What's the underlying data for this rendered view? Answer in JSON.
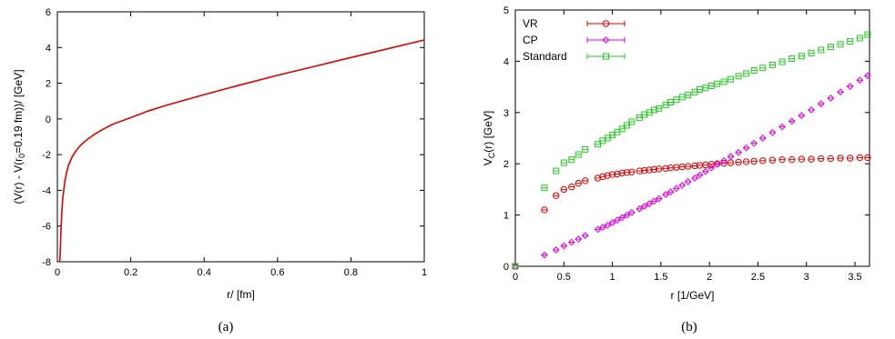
{
  "chart_data": [
    {
      "type": "line",
      "caption": "(a)",
      "xlabel": "r/ [fm]",
      "ylabel": "(V(r) - V(r0=0.19 fm))/ [GeV]",
      "xlim": [
        0,
        1
      ],
      "ylim": [
        -8,
        6
      ],
      "xticks": [
        "0",
        "0.2",
        "0.4",
        "0.6",
        "0.8",
        "1"
      ],
      "yticks": [
        "-8",
        "-6",
        "-4",
        "-2",
        "0",
        "2",
        "4",
        "6"
      ],
      "grid": false,
      "series": [
        {
          "color": "#e00000",
          "x": [
            0.0065,
            0.008,
            0.01,
            0.0125,
            0.015,
            0.02,
            0.025,
            0.03,
            0.04,
            0.05,
            0.06,
            0.07,
            0.08,
            0.1,
            0.12,
            0.15,
            0.19,
            0.25,
            0.3,
            0.4,
            0.5,
            0.6,
            0.7,
            0.8,
            0.9,
            1.0
          ],
          "y": [
            -8.0,
            -7.42,
            -6.2,
            -5.11,
            -4.4,
            -3.55,
            -3.0,
            -2.62,
            -2.14,
            -1.8,
            -1.55,
            -1.35,
            -1.18,
            -0.88,
            -0.63,
            -0.31,
            0.0,
            0.46,
            0.78,
            1.36,
            1.91,
            2.44,
            2.94,
            3.44,
            3.93,
            4.42
          ]
        }
      ]
    },
    {
      "type": "scatter",
      "caption": "(b)",
      "xlabel": "r [1/GeV]",
      "ylabel": "VC(r) [GeV]",
      "xlim": [
        0,
        3.65
      ],
      "ylim": [
        0,
        5
      ],
      "xticks": [
        "0",
        "0.5",
        "1",
        "1.5",
        "2",
        "2.5",
        "3",
        "3.5"
      ],
      "yticks": [
        "0",
        "1",
        "2",
        "3",
        "4",
        "5"
      ],
      "grid": false,
      "legend_position": "top-left",
      "series": [
        {
          "name": "VR",
          "color": "#e00000",
          "marker": "circle",
          "x": [
            0,
            0.3,
            0.42,
            0.5,
            0.58,
            0.65,
            0.72,
            0.85,
            0.9,
            0.95,
            1.0,
            1.05,
            1.1,
            1.15,
            1.2,
            1.28,
            1.33,
            1.38,
            1.43,
            1.48,
            1.55,
            1.6,
            1.66,
            1.72,
            1.78,
            1.85,
            1.9,
            1.96,
            2.02,
            2.08,
            2.15,
            2.22,
            2.3,
            2.38,
            2.46,
            2.55,
            2.65,
            2.75,
            2.85,
            2.95,
            3.05,
            3.15,
            3.25,
            3.35,
            3.45,
            3.55,
            3.63
          ],
          "y": [
            0,
            1.1,
            1.38,
            1.5,
            1.55,
            1.62,
            1.67,
            1.72,
            1.75,
            1.77,
            1.79,
            1.8,
            1.82,
            1.83,
            1.84,
            1.86,
            1.87,
            1.88,
            1.89,
            1.9,
            1.91,
            1.92,
            1.93,
            1.94,
            1.95,
            1.96,
            1.97,
            1.98,
            1.99,
            2.0,
            2.01,
            2.02,
            2.03,
            2.04,
            2.05,
            2.06,
            2.07,
            2.08,
            2.08,
            2.09,
            2.09,
            2.1,
            2.1,
            2.11,
            2.11,
            2.12,
            2.12
          ]
        },
        {
          "name": "CP",
          "color": "#e000e0",
          "marker": "diamond",
          "x": [
            0,
            0.3,
            0.42,
            0.5,
            0.58,
            0.65,
            0.72,
            0.85,
            0.9,
            0.95,
            1.0,
            1.05,
            1.1,
            1.15,
            1.2,
            1.28,
            1.33,
            1.38,
            1.43,
            1.48,
            1.55,
            1.6,
            1.66,
            1.72,
            1.78,
            1.85,
            1.9,
            1.96,
            2.02,
            2.08,
            2.15,
            2.22,
            2.3,
            2.38,
            2.46,
            2.55,
            2.65,
            2.75,
            2.85,
            2.95,
            3.05,
            3.15,
            3.25,
            3.35,
            3.45,
            3.55,
            3.63
          ],
          "y": [
            0,
            0.22,
            0.32,
            0.4,
            0.47,
            0.53,
            0.6,
            0.72,
            0.76,
            0.8,
            0.85,
            0.9,
            0.95,
            1.0,
            1.05,
            1.12,
            1.17,
            1.22,
            1.27,
            1.32,
            1.4,
            1.45,
            1.52,
            1.58,
            1.65,
            1.72,
            1.78,
            1.85,
            1.92,
            1.99,
            2.06,
            2.14,
            2.22,
            2.31,
            2.4,
            2.5,
            2.61,
            2.72,
            2.83,
            2.94,
            3.05,
            3.17,
            3.28,
            3.4,
            3.51,
            3.63,
            3.72
          ]
        },
        {
          "name": "Standard",
          "color": "#22cc22",
          "marker": "square",
          "x": [
            0,
            0.3,
            0.42,
            0.5,
            0.58,
            0.65,
            0.72,
            0.85,
            0.9,
            0.95,
            1.0,
            1.05,
            1.1,
            1.15,
            1.2,
            1.28,
            1.33,
            1.38,
            1.43,
            1.48,
            1.55,
            1.6,
            1.66,
            1.72,
            1.78,
            1.85,
            1.9,
            1.96,
            2.02,
            2.08,
            2.15,
            2.22,
            2.3,
            2.38,
            2.46,
            2.55,
            2.65,
            2.75,
            2.85,
            2.95,
            3.05,
            3.15,
            3.25,
            3.35,
            3.45,
            3.55,
            3.63
          ],
          "y": [
            0,
            1.53,
            1.86,
            2.02,
            2.08,
            2.18,
            2.28,
            2.38,
            2.45,
            2.5,
            2.56,
            2.62,
            2.68,
            2.75,
            2.82,
            2.9,
            2.96,
            3.0,
            3.05,
            3.08,
            3.15,
            3.2,
            3.25,
            3.3,
            3.34,
            3.4,
            3.45,
            3.48,
            3.52,
            3.56,
            3.6,
            3.65,
            3.71,
            3.76,
            3.82,
            3.87,
            3.93,
            3.99,
            4.05,
            4.1,
            4.16,
            4.22,
            4.28,
            4.33,
            4.39,
            4.45,
            4.52
          ]
        }
      ]
    }
  ]
}
